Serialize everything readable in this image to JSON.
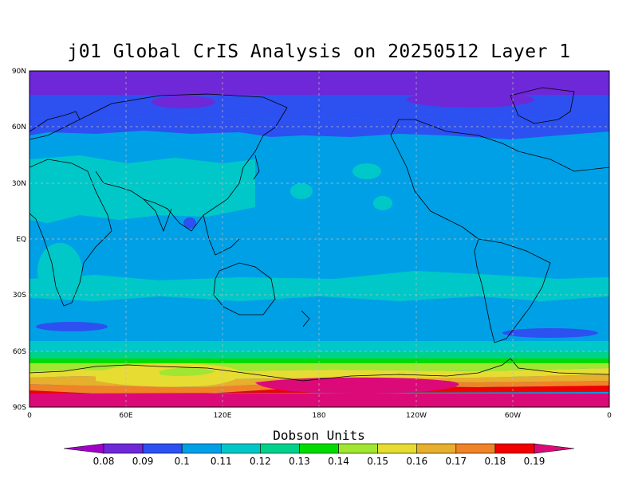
{
  "title": "j01 Global CrIS Analysis on 20250512 Layer 1",
  "units": "Dobson Units",
  "map": {
    "lat_labels": [
      "90N",
      "60N",
      "30N",
      "EQ",
      "30S",
      "60S",
      "90S"
    ],
    "lon_labels": [
      "0",
      "60E",
      "120E",
      "180",
      "120W",
      "60W",
      "0"
    ]
  },
  "colorbar": {
    "colors": [
      "#a000c8",
      "#6e28d8",
      "#2d50f0",
      "#00a0e6",
      "#00c8c8",
      "#00d28c",
      "#00dc00",
      "#a0e632",
      "#e6dc32",
      "#e6af2d",
      "#f08228",
      "#f00000",
      "#dc0a78"
    ],
    "labels": [
      "0.08",
      "0.09",
      "0.1",
      "0.11",
      "0.12",
      "0.13",
      "0.14",
      "0.15",
      "0.16",
      "0.17",
      "0.18",
      "0.19"
    ]
  }
}
